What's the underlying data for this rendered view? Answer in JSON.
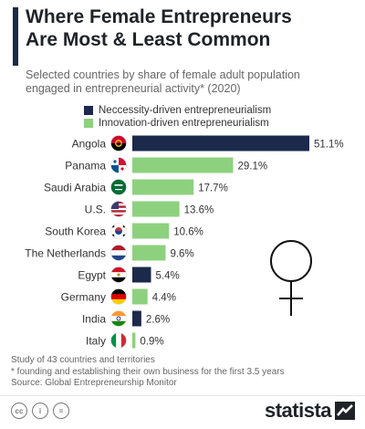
{
  "header": {
    "title_line1": "Where Female Entrepreneurs",
    "title_line2": "Are Most & Least Common",
    "subtitle_line1": "Selected countries by share of female adult population",
    "subtitle_line2": "engaged in entrepreneurial activity* (2020)"
  },
  "colors": {
    "necessity": "#1b2a4a",
    "innovation": "#8dd17e",
    "accent": "#1b2a4a"
  },
  "chart_data": {
    "type": "bar",
    "orientation": "horizontal",
    "title": "Where Female Entrepreneurs Are Most & Least Common",
    "legend_placement": "top",
    "grid": false,
    "series_names": [
      "Neccessity-driven entrepreneurialism",
      "Innovation-driven entrepreneurialism"
    ],
    "categories": [
      "Angola",
      "Panama",
      "Saudi Arabia",
      "U.S.",
      "South Korea",
      "The Netherlands",
      "Egypt",
      "Germany",
      "India",
      "Italy"
    ],
    "values": [
      51.1,
      29.1,
      17.7,
      13.6,
      10.6,
      9.6,
      5.4,
      4.4,
      2.6,
      0.9
    ],
    "value_labels": [
      "51.1%",
      "29.1%",
      "17.7%",
      "13.6%",
      "10.6%",
      "9.6%",
      "5.4%",
      "4.4%",
      "2.6%",
      "0.9%"
    ],
    "series_of_bar": [
      "necessity",
      "innovation",
      "innovation",
      "innovation",
      "innovation",
      "innovation",
      "necessity",
      "innovation",
      "necessity",
      "innovation"
    ],
    "flags": [
      "angola-flag-icon",
      "panama-flag-icon",
      "saudi-arabia-flag-icon",
      "usa-flag-icon",
      "south-korea-flag-icon",
      "netherlands-flag-icon",
      "egypt-flag-icon",
      "germany-flag-icon",
      "india-flag-icon",
      "italy-flag-icon"
    ],
    "xlim": [
      0,
      51.1
    ]
  },
  "footer": {
    "line1": "Study of 43 countries and territories",
    "line2": "* founding and establishing their own business for the first 3.5 years",
    "line3": "Source: Global Entrepreneurship Monitor"
  },
  "brand": {
    "logo_text": "statista"
  },
  "license_icons": [
    "cc",
    "i",
    "="
  ]
}
